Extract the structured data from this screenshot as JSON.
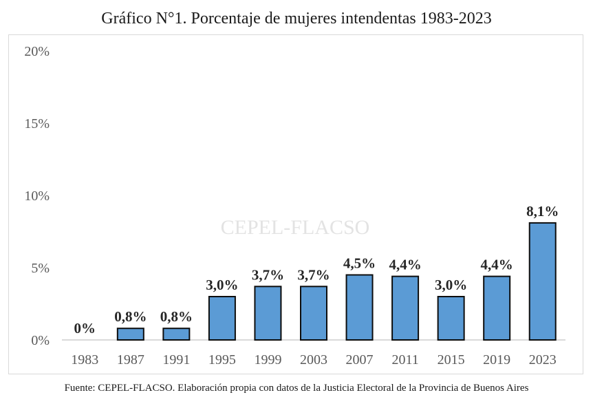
{
  "chart_data": {
    "type": "bar",
    "title": "Gráfico N°1. Porcentaje de mujeres intendentas 1983-2023",
    "xlabel": "",
    "ylabel": "",
    "categories": [
      "1983",
      "1987",
      "1991",
      "1995",
      "1999",
      "2003",
      "2007",
      "2011",
      "2015",
      "2019",
      "2023"
    ],
    "values": [
      0,
      0.8,
      0.8,
      3.0,
      3.7,
      3.7,
      4.5,
      4.4,
      3.0,
      4.4,
      8.1
    ],
    "data_labels": [
      "0%",
      "0,8%",
      "0,8%",
      "3,0%",
      "3,7%",
      "3,7%",
      "4,5%",
      "4,4%",
      "3,0%",
      "4,4%",
      "8,1%"
    ],
    "ylim": [
      0,
      20
    ],
    "yticks": [
      0,
      5,
      10,
      15,
      20
    ],
    "ytick_labels": [
      "0%",
      "5%",
      "10%",
      "15%",
      "20%"
    ],
    "grid": false,
    "legend": "none",
    "watermark": "CEPEL-FLACSO",
    "bar_color": "#5b9bd5",
    "bar_edge_color": "#0d0d0d",
    "source": "Fuente: CEPEL-FLACSO. Elaboración propia con datos de la Justicia Electoral de la Provincia de Buenos Aires"
  }
}
